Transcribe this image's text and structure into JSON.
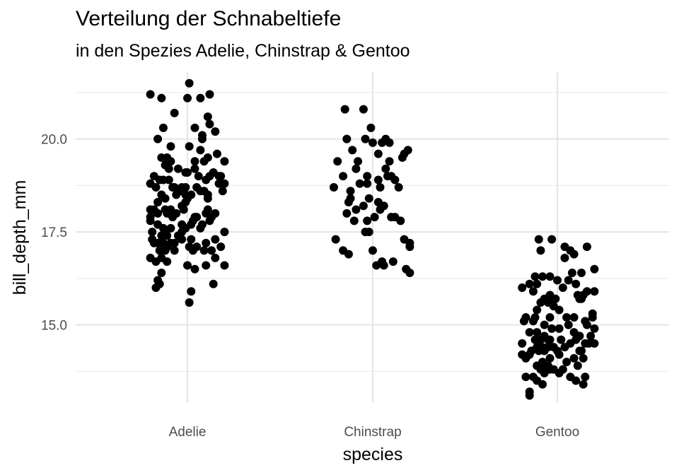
{
  "chart_data": {
    "type": "scatter",
    "title": "Verteilung der Schnabeltiefe",
    "subtitle": "in den Spezies Adelie, Chinstrap & Gentoo",
    "xlabel": "species",
    "ylabel": "bill_depth_mm",
    "categories": [
      "Adelie",
      "Chinstrap",
      "Gentoo"
    ],
    "ylim": [
      12.9,
      21.8
    ],
    "yticks": [
      15.0,
      17.5,
      20.0
    ],
    "ytick_labels": [
      "15.0",
      "17.5",
      "20.0"
    ],
    "minor_yticks": [
      13.75,
      16.25,
      18.75,
      21.25
    ],
    "grid": true,
    "point_color": "#000000",
    "series": [
      {
        "category": "Adelie",
        "points": [
          [
            0.01,
            21.5
          ],
          [
            -0.2,
            21.2
          ],
          [
            -0.14,
            21.1
          ],
          [
            0.12,
            21.2
          ],
          [
            0.0,
            21.1
          ],
          [
            0.07,
            21.1
          ],
          [
            -0.07,
            20.7
          ],
          [
            0.11,
            20.6
          ],
          [
            -0.13,
            20.3
          ],
          [
            0.04,
            20.3
          ],
          [
            0.12,
            20.4
          ],
          [
            0.15,
            20.2
          ],
          [
            0.08,
            20.0
          ],
          [
            0.08,
            20.1
          ],
          [
            -0.16,
            20.0
          ],
          [
            -0.09,
            19.8
          ],
          [
            0.01,
            19.8
          ],
          [
            0.07,
            19.7
          ],
          [
            0.11,
            19.5
          ],
          [
            -0.14,
            19.5
          ],
          [
            -0.11,
            19.5
          ],
          [
            -0.09,
            19.4
          ],
          [
            0.04,
            19.4
          ],
          [
            0.09,
            19.4
          ],
          [
            0.16,
            19.6
          ],
          [
            0.2,
            19.4
          ],
          [
            -0.12,
            19.3
          ],
          [
            -0.1,
            19.2
          ],
          [
            -0.05,
            19.2
          ],
          [
            0.0,
            19.1
          ],
          [
            -0.01,
            19.1
          ],
          [
            -0.18,
            19.0
          ],
          [
            0.06,
            19.0
          ],
          [
            0.04,
            19.2
          ],
          [
            0.14,
            19.1
          ],
          [
            0.12,
            19.0
          ],
          [
            0.17,
            19.0
          ],
          [
            0.18,
            19.0
          ],
          [
            -0.15,
            18.9
          ],
          [
            -0.13,
            18.9
          ],
          [
            0.1,
            18.9
          ],
          [
            0.17,
            18.8
          ],
          [
            0.2,
            18.8
          ],
          [
            -0.2,
            18.8
          ],
          [
            -0.1,
            18.9
          ],
          [
            -0.08,
            18.7
          ],
          [
            -0.07,
            18.7
          ],
          [
            -0.03,
            18.7
          ],
          [
            -0.01,
            18.7
          ],
          [
            0.05,
            18.7
          ],
          [
            0.07,
            18.6
          ],
          [
            0.09,
            18.6
          ],
          [
            -0.05,
            18.6
          ],
          [
            0.19,
            18.6
          ],
          [
            -0.17,
            18.7
          ],
          [
            0.11,
            18.5
          ],
          [
            -0.06,
            18.5
          ],
          [
            -0.03,
            18.6
          ],
          [
            -0.01,
            18.5
          ],
          [
            0.02,
            18.5
          ],
          [
            -0.14,
            18.5
          ],
          [
            -0.12,
            18.4
          ],
          [
            -0.16,
            18.3
          ],
          [
            0.11,
            18.4
          ],
          [
            0.0,
            18.4
          ],
          [
            -0.01,
            18.3
          ],
          [
            -0.2,
            18.1
          ],
          [
            -0.18,
            18.1
          ],
          [
            -0.16,
            18.0
          ],
          [
            -0.12,
            18.1
          ],
          [
            -0.09,
            18.1
          ],
          [
            -0.06,
            18.0
          ],
          [
            -0.11,
            18.0
          ],
          [
            0.11,
            18.1
          ],
          [
            0.15,
            18.0
          ],
          [
            -0.03,
            18.2
          ],
          [
            -0.08,
            17.9
          ],
          [
            0.04,
            17.9
          ],
          [
            0.1,
            18.0
          ],
          [
            0.13,
            17.9
          ],
          [
            -0.02,
            18.1
          ],
          [
            0.05,
            17.9
          ],
          [
            -0.2,
            17.8
          ],
          [
            -0.2,
            17.9
          ],
          [
            -0.16,
            17.7
          ],
          [
            0.12,
            17.8
          ],
          [
            -0.03,
            17.7
          ],
          [
            0.02,
            17.7
          ],
          [
            0.03,
            17.8
          ],
          [
            0.08,
            17.7
          ],
          [
            0.07,
            17.6
          ],
          [
            -0.12,
            17.5
          ],
          [
            -0.19,
            17.5
          ],
          [
            -0.02,
            17.6
          ],
          [
            -0.13,
            17.6
          ],
          [
            -0.09,
            17.6
          ],
          [
            -0.11,
            17.4
          ],
          [
            -0.05,
            17.4
          ],
          [
            -0.03,
            17.5
          ],
          [
            -0.01,
            17.6
          ],
          [
            0.2,
            17.5
          ],
          [
            -0.19,
            17.3
          ],
          [
            -0.14,
            17.4
          ],
          [
            0.02,
            17.3
          ],
          [
            0.15,
            17.3
          ],
          [
            0.1,
            17.2
          ],
          [
            -0.18,
            17.2
          ],
          [
            -0.13,
            17.2
          ],
          [
            -0.09,
            17.2
          ],
          [
            -0.07,
            17.2
          ],
          [
            -0.03,
            17.3
          ],
          [
            0.01,
            17.1
          ],
          [
            -0.11,
            17.1
          ],
          [
            -0.15,
            17.0
          ],
          [
            -0.16,
            17.2
          ],
          [
            -0.12,
            17.0
          ],
          [
            -0.07,
            17.0
          ],
          [
            0.03,
            17.0
          ],
          [
            0.05,
            17.1
          ],
          [
            0.09,
            17.0
          ],
          [
            0.13,
            17.0
          ],
          [
            0.18,
            17.1
          ],
          [
            -0.2,
            16.8
          ],
          [
            -0.17,
            16.7
          ],
          [
            -0.14,
            16.8
          ],
          [
            -0.11,
            16.7
          ],
          [
            0.15,
            16.8
          ],
          [
            0.2,
            16.6
          ],
          [
            0.1,
            16.6
          ],
          [
            0.04,
            16.5
          ],
          [
            0.0,
            16.6
          ],
          [
            -0.14,
            16.4
          ],
          [
            -0.16,
            16.2
          ],
          [
            -0.15,
            16.1
          ],
          [
            -0.17,
            16.0
          ],
          [
            0.14,
            16.1
          ],
          [
            0.02,
            15.9
          ],
          [
            0.01,
            15.6
          ]
        ]
      },
      {
        "category": "Chinstrap",
        "points": [
          [
            -0.05,
            20.8
          ],
          [
            -0.15,
            20.8
          ],
          [
            -0.01,
            20.3
          ],
          [
            -0.14,
            20.0
          ],
          [
            0.0,
            19.9
          ],
          [
            0.07,
            20.0
          ],
          [
            -0.04,
            20.0
          ],
          [
            0.05,
            19.9
          ],
          [
            0.09,
            19.9
          ],
          [
            -0.11,
            19.7
          ],
          [
            0.03,
            19.6
          ],
          [
            0.19,
            19.7
          ],
          [
            0.17,
            19.6
          ],
          [
            0.16,
            19.5
          ],
          [
            -0.08,
            19.4
          ],
          [
            0.09,
            19.4
          ],
          [
            -0.19,
            19.4
          ],
          [
            -0.09,
            19.2
          ],
          [
            0.07,
            19.2
          ],
          [
            0.1,
            19.0
          ],
          [
            -0.16,
            19.0
          ],
          [
            0.08,
            19.0
          ],
          [
            0.12,
            18.9
          ],
          [
            -0.03,
            19.0
          ],
          [
            -0.03,
            18.8
          ],
          [
            -0.07,
            18.8
          ],
          [
            0.03,
            18.9
          ],
          [
            0.14,
            18.7
          ],
          [
            0.04,
            18.7
          ],
          [
            -0.21,
            18.7
          ],
          [
            -0.12,
            18.6
          ],
          [
            -0.12,
            18.4
          ],
          [
            -0.02,
            18.4
          ],
          [
            0.03,
            18.3
          ],
          [
            -0.13,
            18.3
          ],
          [
            0.06,
            18.2
          ],
          [
            -0.05,
            18.2
          ],
          [
            0.04,
            18.1
          ],
          [
            -0.09,
            18.1
          ],
          [
            -0.14,
            18.0
          ],
          [
            0.01,
            17.9
          ],
          [
            -0.03,
            17.8
          ],
          [
            0.1,
            17.9
          ],
          [
            0.12,
            17.9
          ],
          [
            0.15,
            17.8
          ],
          [
            -0.1,
            17.8
          ],
          [
            -0.02,
            17.5
          ],
          [
            -0.04,
            17.5
          ],
          [
            -0.2,
            17.3
          ],
          [
            0.17,
            17.3
          ],
          [
            0.2,
            17.2
          ],
          [
            0.2,
            17.1
          ],
          [
            -0.16,
            17.0
          ],
          [
            0.0,
            17.0
          ],
          [
            -0.13,
            16.9
          ],
          [
            0.11,
            16.7
          ],
          [
            0.06,
            16.6
          ],
          [
            0.02,
            16.6
          ],
          [
            0.05,
            16.7
          ],
          [
            0.18,
            16.5
          ],
          [
            0.2,
            16.4
          ]
        ]
      },
      {
        "category": "Gentoo",
        "points": [
          [
            -0.1,
            17.3
          ],
          [
            -0.09,
            17.0
          ],
          [
            -0.03,
            17.3
          ],
          [
            0.04,
            17.1
          ],
          [
            0.07,
            17.0
          ],
          [
            0.16,
            17.1
          ],
          [
            0.04,
            16.8
          ],
          [
            0.09,
            16.9
          ],
          [
            0.13,
            16.4
          ],
          [
            -0.12,
            16.3
          ],
          [
            -0.08,
            16.3
          ],
          [
            -0.04,
            16.3
          ],
          [
            0.0,
            16.2
          ],
          [
            0.08,
            16.4
          ],
          [
            -0.15,
            16.1
          ],
          [
            -0.11,
            16.1
          ],
          [
            0.06,
            16.2
          ],
          [
            0.1,
            16.1
          ],
          [
            0.2,
            16.5
          ],
          [
            -0.19,
            16.0
          ],
          [
            -0.13,
            15.9
          ],
          [
            0.03,
            16.0
          ],
          [
            0.11,
            15.8
          ],
          [
            0.14,
            15.8
          ],
          [
            -0.04,
            15.8
          ],
          [
            -0.07,
            15.7
          ],
          [
            0.16,
            15.9
          ],
          [
            0.2,
            15.9
          ],
          [
            -0.09,
            15.6
          ],
          [
            -0.05,
            15.6
          ],
          [
            -0.03,
            15.7
          ],
          [
            -0.01,
            15.7
          ],
          [
            0.12,
            15.7
          ],
          [
            0.13,
            15.7
          ],
          [
            -0.11,
            15.4
          ],
          [
            -0.02,
            15.5
          ],
          [
            0.01,
            15.4
          ],
          [
            0.19,
            15.3
          ],
          [
            -0.17,
            15.2
          ],
          [
            -0.12,
            15.2
          ],
          [
            -0.04,
            15.2
          ],
          [
            0.05,
            15.2
          ],
          [
            0.09,
            15.2
          ],
          [
            0.16,
            15.0
          ],
          [
            0.19,
            15.2
          ],
          [
            -0.18,
            15.1
          ],
          [
            -0.13,
            15.1
          ],
          [
            -0.07,
            15.0
          ],
          [
            -0.03,
            14.9
          ],
          [
            0.01,
            14.9
          ],
          [
            0.06,
            15.0
          ],
          [
            0.15,
            15.1
          ],
          [
            0.2,
            14.9
          ],
          [
            -0.15,
            14.8
          ],
          [
            -0.11,
            14.8
          ],
          [
            -0.07,
            14.7
          ],
          [
            -0.04,
            14.6
          ],
          [
            0.09,
            14.8
          ],
          [
            0.12,
            14.7
          ],
          [
            0.18,
            14.7
          ],
          [
            -0.09,
            14.6
          ],
          [
            -0.05,
            14.6
          ],
          [
            0.02,
            14.6
          ],
          [
            0.07,
            14.5
          ],
          [
            0.1,
            14.6
          ],
          [
            -0.12,
            14.6
          ],
          [
            -0.19,
            14.5
          ],
          [
            0.15,
            14.5
          ],
          [
            0.17,
            14.5
          ],
          [
            0.2,
            14.5
          ],
          [
            -0.11,
            14.4
          ],
          [
            -0.08,
            14.4
          ],
          [
            -0.05,
            14.4
          ],
          [
            -0.02,
            14.4
          ],
          [
            0.04,
            14.4
          ],
          [
            0.12,
            14.3
          ],
          [
            -0.14,
            14.3
          ],
          [
            -0.1,
            14.3
          ],
          [
            -0.07,
            14.3
          ],
          [
            0.0,
            14.3
          ],
          [
            0.13,
            14.3
          ],
          [
            -0.19,
            14.2
          ],
          [
            -0.15,
            14.2
          ],
          [
            -0.04,
            14.1
          ],
          [
            0.01,
            14.2
          ],
          [
            0.09,
            14.1
          ],
          [
            0.14,
            14.1
          ],
          [
            -0.17,
            14.1
          ],
          [
            -0.08,
            14.0
          ],
          [
            -0.05,
            13.9
          ],
          [
            0.03,
            13.8
          ],
          [
            0.05,
            14.0
          ],
          [
            0.11,
            13.9
          ],
          [
            -0.11,
            13.9
          ],
          [
            -0.09,
            13.8
          ],
          [
            -0.07,
            13.8
          ],
          [
            -0.04,
            13.8
          ],
          [
            -0.02,
            13.8
          ],
          [
            0.01,
            13.7
          ],
          [
            0.07,
            13.6
          ],
          [
            0.15,
            13.6
          ],
          [
            -0.07,
            13.7
          ],
          [
            -0.17,
            13.6
          ],
          [
            -0.13,
            13.6
          ],
          [
            -0.11,
            13.5
          ],
          [
            -0.08,
            13.4
          ],
          [
            0.1,
            13.5
          ],
          [
            0.14,
            13.4
          ],
          [
            -0.15,
            13.2
          ],
          [
            -0.15,
            13.1
          ]
        ]
      }
    ]
  }
}
